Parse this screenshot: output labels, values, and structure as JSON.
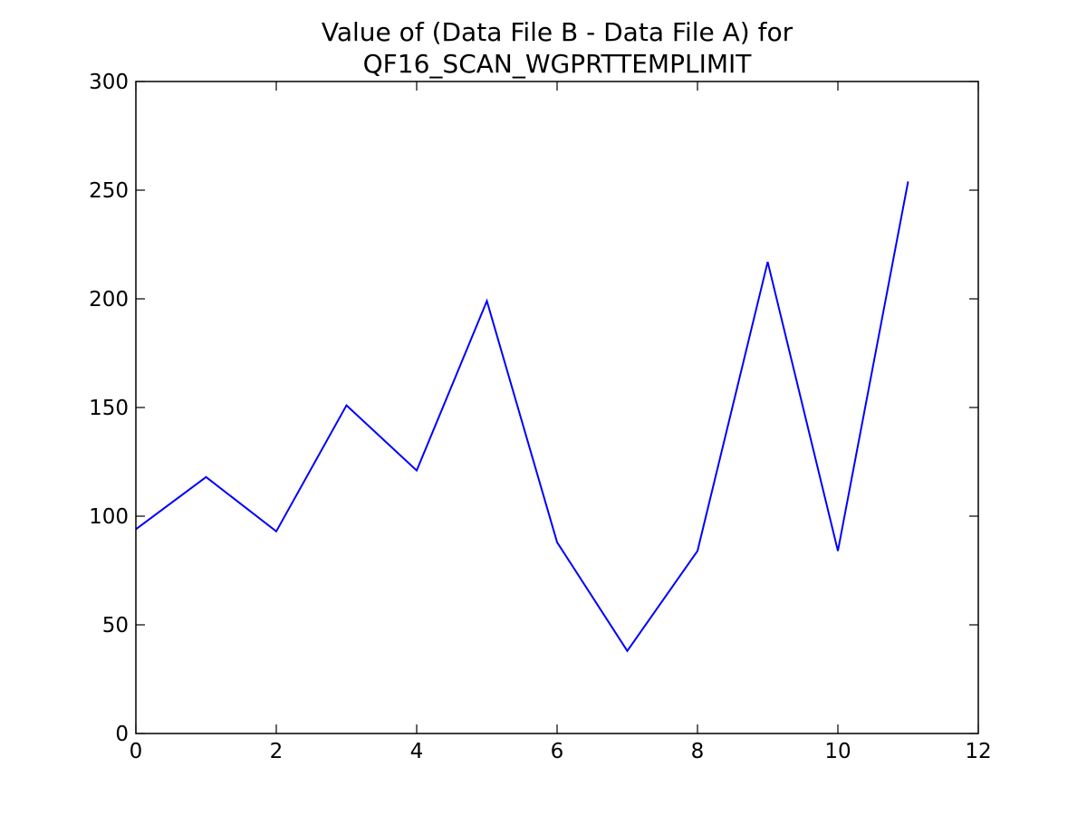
{
  "chart_data": {
    "type": "line",
    "title_lines": [
      "Value of (Data File B - Data File A) for",
      "QF16_SCAN_WGPRTTEMPLIMIT"
    ],
    "xlabel": "",
    "ylabel": "",
    "xlim": [
      0,
      12
    ],
    "ylim": [
      0,
      300
    ],
    "xticks": [
      0,
      2,
      4,
      6,
      8,
      10,
      12
    ],
    "yticks": [
      0,
      50,
      100,
      150,
      200,
      250,
      300
    ],
    "grid": false,
    "series": [
      {
        "color": "#0000ff",
        "x": [
          0,
          1,
          2,
          3,
          4,
          5,
          6,
          7,
          8,
          9,
          10,
          11
        ],
        "y": [
          94,
          118,
          93,
          151,
          121,
          199,
          88,
          38,
          84,
          217,
          84,
          254
        ]
      }
    ]
  }
}
